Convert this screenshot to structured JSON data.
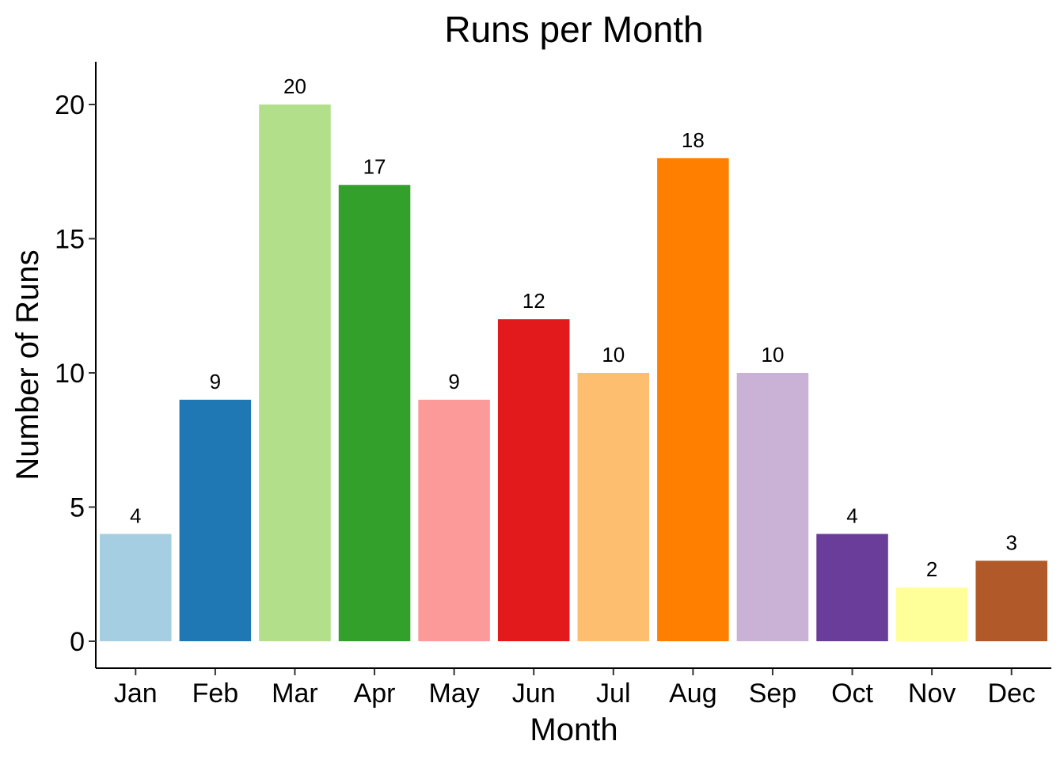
{
  "chart_data": {
    "type": "bar",
    "title": "Runs per Month",
    "xlabel": "Month",
    "ylabel": "Number of Runs",
    "categories": [
      "Jan",
      "Feb",
      "Mar",
      "Apr",
      "May",
      "Jun",
      "Jul",
      "Aug",
      "Sep",
      "Oct",
      "Nov",
      "Dec"
    ],
    "values": [
      4,
      9,
      20,
      17,
      9,
      12,
      10,
      18,
      10,
      4,
      2,
      3
    ],
    "colors": [
      "#A6CEE3",
      "#1F78B4",
      "#B2DF8A",
      "#33A02C",
      "#FB9A99",
      "#E31A1C",
      "#FDBF6F",
      "#FF7F00",
      "#CAB2D6",
      "#6A3D9A",
      "#FFFF99",
      "#B15928"
    ],
    "yticks": [
      0,
      5,
      10,
      15,
      20
    ],
    "ylim": [
      0,
      21.5
    ],
    "grid": false,
    "legend": "none",
    "data_labels": true
  }
}
